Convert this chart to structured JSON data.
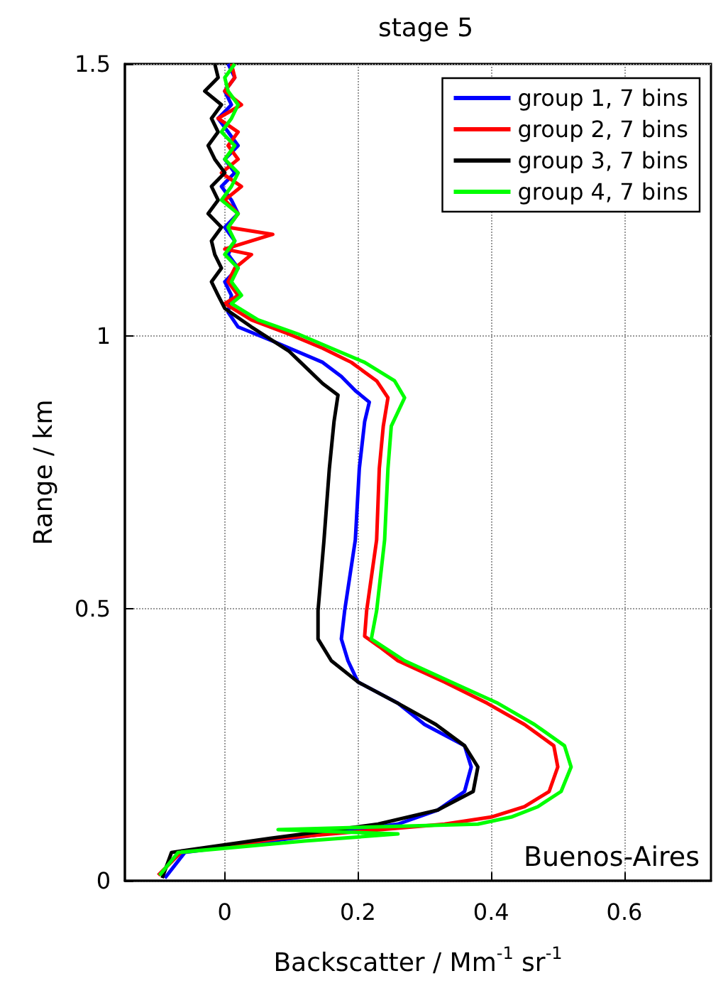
{
  "chart_data": {
    "type": "line",
    "title": "stage 5",
    "xlabel": "Backscatter / Mm$^{-1}$ sr$^{-1}$",
    "ylabel": "Range / km",
    "annotations": [
      "Buenos-Aires"
    ],
    "xlim": [
      -0.15,
      0.73
    ],
    "xticks": [
      0,
      0.2,
      0.4,
      0.6
    ],
    "ylim": [
      0,
      1.5
    ],
    "yticks": [
      0,
      0.5,
      1,
      1.5
    ],
    "grid": true,
    "legend": "top right",
    "marker": "none",
    "line_style": "solid",
    "series": [
      {
        "name": "group 1, 7 bins",
        "color": "#0000ff",
        "x": [
          -0.09,
          -0.06,
          0.1,
          0.26,
          0.32,
          0.36,
          0.37,
          0.36,
          0.3,
          0.26,
          0.2,
          0.185,
          0.175,
          0.18,
          0.196,
          0.202,
          0.21,
          0.217,
          0.196,
          0.175,
          0.147,
          0.074,
          0.02,
          0.005,
          0.01,
          0.0,
          0.02,
          0.005,
          0.015,
          0.0,
          0.02,
          0.01,
          -0.005,
          0.015,
          0.0,
          0.02,
          0.005,
          -0.01,
          0.01,
          0.0,
          0.015,
          0.005
        ],
        "values": [
          0.005,
          0.052,
          0.078,
          0.104,
          0.13,
          0.164,
          0.209,
          0.248,
          0.287,
          0.326,
          0.365,
          0.404,
          0.444,
          0.496,
          0.626,
          0.757,
          0.843,
          0.879,
          0.9,
          0.926,
          0.952,
          0.99,
          1.017,
          1.044,
          1.075,
          1.1,
          1.125,
          1.15,
          1.175,
          1.2,
          1.225,
          1.25,
          1.275,
          1.3,
          1.325,
          1.35,
          1.375,
          1.4,
          1.425,
          1.45,
          1.475,
          1.5
        ]
      },
      {
        "name": "group 2, 7 bins",
        "color": "#ff0000",
        "x": [
          -0.1,
          -0.066,
          0.083,
          0.33,
          0.4,
          0.45,
          0.487,
          0.5,
          0.494,
          0.45,
          0.394,
          0.33,
          0.26,
          0.232,
          0.21,
          0.213,
          0.228,
          0.232,
          0.238,
          0.245,
          0.228,
          0.19,
          0.147,
          0.096,
          0.04,
          0.0,
          0.02,
          0.005,
          0.015,
          0.04,
          0.0,
          0.072,
          0.005,
          0.02,
          0.0,
          0.025,
          -0.005,
          0.02,
          0.005,
          0.02,
          -0.01,
          0.025,
          0.0,
          0.015,
          0.01
        ],
        "values": [
          0.01,
          0.052,
          0.078,
          0.104,
          0.117,
          0.136,
          0.164,
          0.209,
          0.248,
          0.287,
          0.326,
          0.365,
          0.404,
          0.43,
          0.449,
          0.496,
          0.626,
          0.757,
          0.835,
          0.887,
          0.918,
          0.952,
          0.978,
          1.004,
          1.03,
          1.06,
          1.075,
          1.1,
          1.125,
          1.15,
          1.16,
          1.187,
          1.2,
          1.225,
          1.25,
          1.275,
          1.3,
          1.325,
          1.35,
          1.375,
          1.4,
          1.425,
          1.45,
          1.475,
          1.5
        ]
      },
      {
        "name": "group 3, 7 bins",
        "color": "#000000",
        "x": [
          -0.094,
          -0.08,
          0.068,
          0.23,
          0.32,
          0.373,
          0.38,
          0.36,
          0.317,
          0.26,
          0.2,
          0.16,
          0.14,
          0.14,
          0.149,
          0.157,
          0.164,
          0.17,
          0.147,
          0.125,
          0.096,
          0.04,
          0.0,
          -0.01,
          -0.02,
          -0.005,
          -0.015,
          -0.02,
          -0.005,
          -0.025,
          -0.01,
          -0.02,
          0.0,
          -0.015,
          -0.025,
          -0.01,
          -0.02,
          -0.005,
          -0.03,
          -0.01,
          -0.015
        ],
        "values": [
          0.005,
          0.052,
          0.078,
          0.104,
          0.13,
          0.164,
          0.209,
          0.248,
          0.287,
          0.326,
          0.365,
          0.404,
          0.444,
          0.496,
          0.626,
          0.757,
          0.843,
          0.892,
          0.913,
          0.939,
          0.973,
          1.017,
          1.051,
          1.075,
          1.1,
          1.125,
          1.15,
          1.175,
          1.2,
          1.225,
          1.25,
          1.275,
          1.3,
          1.325,
          1.35,
          1.375,
          1.4,
          1.425,
          1.45,
          1.475,
          1.5
        ]
      },
      {
        "name": "group 4, 7 bins",
        "color": "#00ff00",
        "x": [
          -0.098,
          -0.07,
          0.12,
          0.26,
          0.08,
          0.38,
          0.43,
          0.47,
          0.505,
          0.52,
          0.51,
          0.465,
          0.41,
          0.34,
          0.27,
          0.22,
          0.228,
          0.24,
          0.245,
          0.25,
          0.27,
          0.255,
          0.21,
          0.16,
          0.11,
          0.05,
          0.01,
          0.025,
          0.01,
          0.02,
          0.0,
          0.015,
          0.005,
          0.02,
          -0.005,
          0.01,
          0.02,
          0.0,
          0.015,
          -0.005,
          0.01,
          0.02,
          0.005,
          0.0,
          0.015
        ],
        "values": [
          0.01,
          0.052,
          0.073,
          0.086,
          0.094,
          0.104,
          0.117,
          0.136,
          0.164,
          0.209,
          0.248,
          0.287,
          0.326,
          0.365,
          0.404,
          0.444,
          0.496,
          0.626,
          0.757,
          0.835,
          0.887,
          0.918,
          0.952,
          0.978,
          1.004,
          1.03,
          1.06,
          1.075,
          1.1,
          1.125,
          1.15,
          1.175,
          1.2,
          1.225,
          1.25,
          1.275,
          1.3,
          1.325,
          1.35,
          1.375,
          1.4,
          1.425,
          1.45,
          1.475,
          1.5
        ]
      }
    ]
  }
}
